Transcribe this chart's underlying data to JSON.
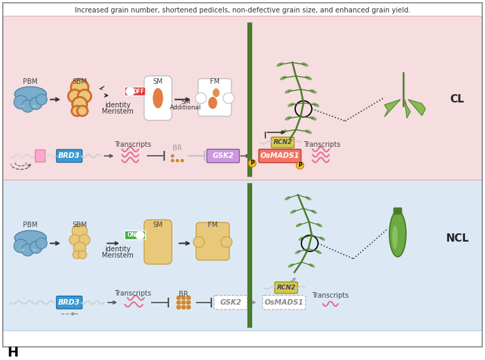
{
  "title": "H",
  "bg_top_color": "#dce9f5",
  "bg_bot_color": "#f5dde0",
  "footer": "Increased grain number, shortened pedicels, non-defective grain size, and enhanced grain yield.",
  "ncl_label": "NCL",
  "cl_label": "CL",
  "colors": {
    "brd3_fill": "#3a9ad4",
    "brd3_edge": "#1e6fa0",
    "rcn2_fill": "#d4c84a",
    "rcn2_edge": "#a09020",
    "gsk2_fill_ncl": "#f0f0f0",
    "gsk2_edge_ncl": "#aaaaaa",
    "gsk2_fill_cl": "#cc99dd",
    "gsk2_edge_cl": "#8855aa",
    "osmads1_fill_ncl": "#f0f0f0",
    "osmads1_edge_ncl": "#aaaaaa",
    "osmads1_fill_cl": "#ee7766",
    "osmads1_edge_cl": "#cc3322",
    "phospho_fill": "#f0c030",
    "phospho_edge": "#b08010",
    "wavy_pink": "#e07090",
    "dna_gray": "#bbbbbb",
    "inhibit_color": "#555555",
    "arrow_color": "#555555",
    "arrow_gray": "#999999",
    "meristem_tan": "#e8c87a",
    "meristem_edge": "#c8a040",
    "pbm_blue": "#7aadcc",
    "pbm_edge": "#4a80a0",
    "switch_on": "#44aa44",
    "switch_off": "#dd3333",
    "stem_green": "#4a7a2a",
    "leaf_green": "#6aaa4a",
    "leaf_light": "#8aca6a",
    "orange_fill": "#e07030",
    "orange_edge": "#b05010"
  }
}
